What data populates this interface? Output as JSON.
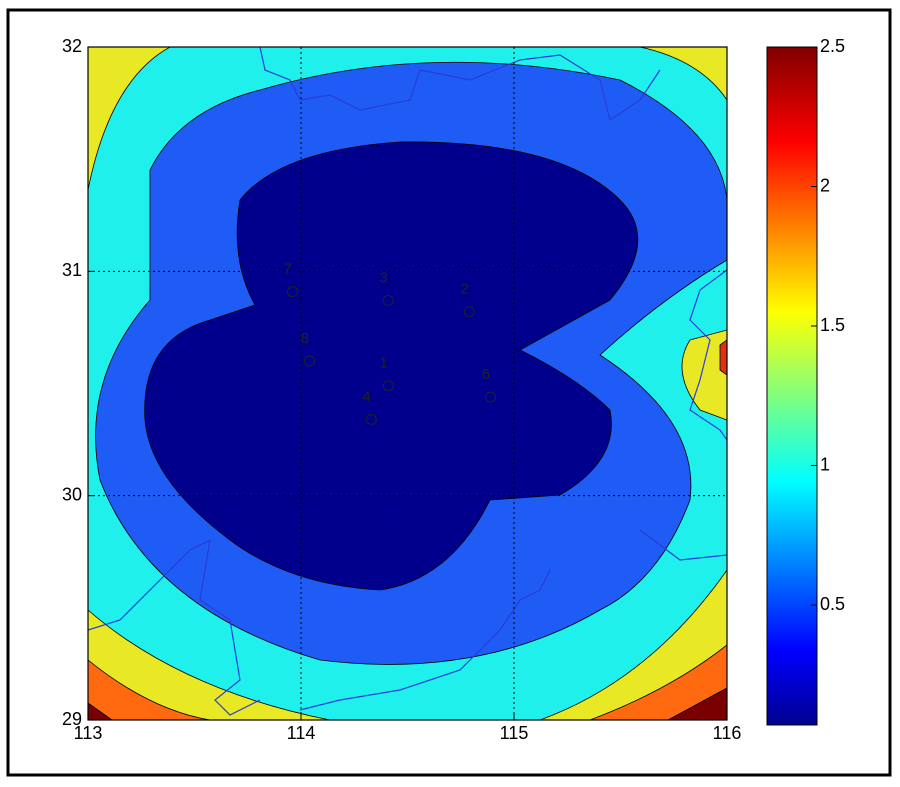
{
  "chart_data": {
    "type": "contour",
    "xlim": [
      113,
      116
    ],
    "xticks": [
      113,
      114,
      115,
      116
    ],
    "ylim": [
      29,
      32
    ],
    "yticks": [
      29,
      30,
      31,
      32
    ],
    "grid": true,
    "colorbar": {
      "clim": [
        0.07,
        2.5
      ],
      "ticks": [
        0.5,
        1,
        1.5,
        2,
        2.5
      ]
    },
    "stations": {
      "labels": [
        "7",
        "3",
        "2",
        "8",
        "1",
        "6",
        "4"
      ],
      "x": [
        113.96,
        114.41,
        114.79,
        114.04,
        114.41,
        114.89,
        114.33
      ],
      "y": [
        30.91,
        30.87,
        30.82,
        30.6,
        30.49,
        30.44,
        30.34
      ]
    }
  }
}
